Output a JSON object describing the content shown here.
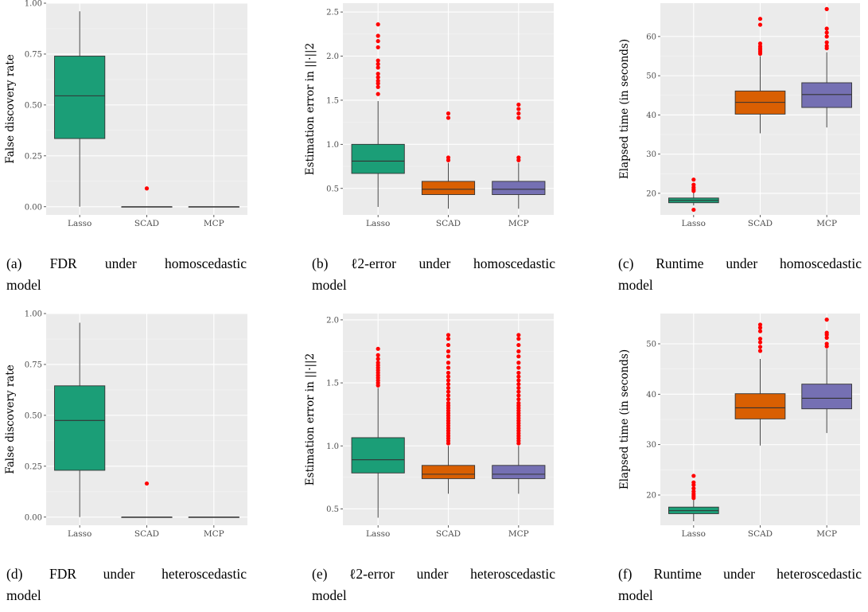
{
  "colors": {
    "panel_bg": "#ebebeb",
    "grid_major": "#ffffff",
    "outlier": "#ff0000",
    "Lasso": "#1b9e77",
    "SCAD": "#d95f02",
    "MCP": "#7570b3",
    "text": "#4d4d4d"
  },
  "chart_data": [
    {
      "type": "box",
      "caption": [
        "(a)",
        "FDR",
        "under",
        "homoscedastic",
        "model"
      ],
      "ylabel": "False discovery rate",
      "ylim": [
        -0.04,
        1.0
      ],
      "yticks": [
        0.0,
        0.25,
        0.5,
        0.75,
        1.0
      ],
      "ytick_labels": [
        "0.00",
        "0.25",
        "0.50",
        "0.75",
        "1.00"
      ],
      "categories": [
        "Lasso",
        "SCAD",
        "MCP"
      ],
      "boxes": [
        {
          "category": "Lasso",
          "q1": 0.335,
          "median": 0.545,
          "q3": 0.74,
          "whisker_low": 0.0,
          "whisker_high": 0.96,
          "outliers": []
        },
        {
          "category": "SCAD",
          "q1": 0.0,
          "median": 0.0,
          "q3": 0.0,
          "whisker_low": 0.0,
          "whisker_high": 0.0,
          "outliers": [
            0.09
          ]
        },
        {
          "category": "MCP",
          "q1": 0.0,
          "median": 0.0,
          "q3": 0.0,
          "whisker_low": 0.0,
          "whisker_high": 0.0,
          "outliers": []
        }
      ]
    },
    {
      "type": "box",
      "caption": [
        "(b)",
        "ℓ2-error",
        "under",
        "homoscedastic",
        "model"
      ],
      "ylabel": "Estimation error in ||·||2",
      "ylim": [
        0.2,
        2.6
      ],
      "yticks": [
        0.5,
        1.0,
        1.5,
        2.0,
        2.5
      ],
      "ytick_labels": [
        "0.5",
        "1.0",
        "1.5",
        "2.0",
        "2.5"
      ],
      "categories": [
        "Lasso",
        "SCAD",
        "MCP"
      ],
      "boxes": [
        {
          "category": "Lasso",
          "q1": 0.67,
          "median": 0.81,
          "q3": 1.0,
          "whisker_low": 0.29,
          "whisker_high": 1.49,
          "outliers": [
            1.57,
            1.65,
            1.69,
            1.72,
            1.76,
            1.8,
            1.87,
            1.91,
            1.95,
            2.1,
            2.17,
            2.23,
            2.36
          ]
        },
        {
          "category": "SCAD",
          "q1": 0.43,
          "median": 0.49,
          "q3": 0.58,
          "whisker_low": 0.27,
          "whisker_high": 0.79,
          "outliers": [
            0.82,
            0.85,
            1.3,
            1.35
          ]
        },
        {
          "category": "MCP",
          "q1": 0.43,
          "median": 0.49,
          "q3": 0.58,
          "whisker_low": 0.27,
          "whisker_high": 0.79,
          "outliers": [
            0.82,
            0.85,
            1.3,
            1.35,
            1.4,
            1.45
          ]
        }
      ]
    },
    {
      "type": "box",
      "caption": [
        "(c)",
        "Runtime",
        "under",
        "homoscedastic",
        "model"
      ],
      "ylabel": "Elapsed time (in seconds)",
      "ylim": [
        14.5,
        68.5
      ],
      "yticks": [
        20,
        30,
        40,
        50,
        60
      ],
      "ytick_labels": [
        "20",
        "30",
        "40",
        "50",
        "60"
      ],
      "categories": [
        "Lasso",
        "SCAD",
        "MCP"
      ],
      "boxes": [
        {
          "category": "Lasso",
          "q1": 17.6,
          "median": 18.2,
          "q3": 18.8,
          "whisker_low": 16.9,
          "whisker_high": 20.3,
          "outliers": [
            15.8,
            20.6,
            21.0,
            21.5,
            22.2,
            23.5
          ]
        },
        {
          "category": "SCAD",
          "q1": 40.2,
          "median": 43.2,
          "q3": 46.1,
          "whisker_low": 35.3,
          "whisker_high": 55.0,
          "outliers": [
            55.6,
            56.1,
            56.6,
            57.0,
            57.5,
            58.2,
            63.0,
            64.5
          ]
        },
        {
          "category": "MCP",
          "q1": 41.9,
          "median": 45.2,
          "q3": 48.2,
          "whisker_low": 36.8,
          "whisker_high": 56.0,
          "outliers": [
            57.0,
            57.6,
            58.5,
            60.0,
            61.0,
            62.0,
            67.0
          ]
        }
      ]
    },
    {
      "type": "box",
      "caption": [
        "(d)",
        "FDR",
        "under",
        "heteroscedastic",
        "model"
      ],
      "ylabel": "False discovery rate",
      "ylim": [
        -0.04,
        1.0
      ],
      "yticks": [
        0.0,
        0.25,
        0.5,
        0.75,
        1.0
      ],
      "ytick_labels": [
        "0.00",
        "0.25",
        "0.50",
        "0.75",
        "1.00"
      ],
      "categories": [
        "Lasso",
        "SCAD",
        "MCP"
      ],
      "boxes": [
        {
          "category": "Lasso",
          "q1": 0.23,
          "median": 0.475,
          "q3": 0.645,
          "whisker_low": 0.0,
          "whisker_high": 0.955,
          "outliers": []
        },
        {
          "category": "SCAD",
          "q1": 0.0,
          "median": 0.0,
          "q3": 0.0,
          "whisker_low": 0.0,
          "whisker_high": 0.0,
          "outliers": [
            0.165
          ]
        },
        {
          "category": "MCP",
          "q1": 0.0,
          "median": 0.0,
          "q3": 0.0,
          "whisker_low": 0.0,
          "whisker_high": 0.0,
          "outliers": []
        }
      ]
    },
    {
      "type": "box",
      "caption": [
        "(e)",
        "ℓ2-error",
        "under",
        "heteroscedastic",
        "model"
      ],
      "ylabel": "Estimation error in ||·||2",
      "ylim": [
        0.37,
        2.05
      ],
      "yticks": [
        0.5,
        1.0,
        1.5,
        2.0
      ],
      "ytick_labels": [
        "0.5",
        "1.0",
        "1.5",
        "2.0"
      ],
      "categories": [
        "Lasso",
        "SCAD",
        "MCP"
      ],
      "boxes": [
        {
          "category": "Lasso",
          "q1": 0.785,
          "median": 0.89,
          "q3": 1.065,
          "whisker_low": 0.43,
          "whisker_high": 1.46,
          "outliers": [
            1.48,
            1.5,
            1.52,
            1.54,
            1.56,
            1.58,
            1.6,
            1.62,
            1.64,
            1.66,
            1.69,
            1.72,
            1.77
          ]
        },
        {
          "category": "SCAD",
          "q1": 0.74,
          "median": 0.775,
          "q3": 0.845,
          "whisker_low": 0.62,
          "whisker_high": 1.0,
          "outliers": [
            1.02,
            1.04,
            1.06,
            1.08,
            1.1,
            1.12,
            1.14,
            1.16,
            1.18,
            1.2,
            1.22,
            1.24,
            1.26,
            1.28,
            1.3,
            1.32,
            1.34,
            1.37,
            1.4,
            1.43,
            1.46,
            1.49,
            1.52,
            1.55,
            1.58,
            1.62,
            1.66,
            1.71,
            1.75,
            1.8,
            1.85,
            1.88
          ]
        },
        {
          "category": "MCP",
          "q1": 0.74,
          "median": 0.775,
          "q3": 0.845,
          "whisker_low": 0.62,
          "whisker_high": 1.0,
          "outliers": [
            1.02,
            1.04,
            1.06,
            1.08,
            1.1,
            1.12,
            1.14,
            1.16,
            1.18,
            1.2,
            1.22,
            1.24,
            1.26,
            1.28,
            1.3,
            1.32,
            1.34,
            1.37,
            1.4,
            1.43,
            1.46,
            1.49,
            1.52,
            1.55,
            1.58,
            1.62,
            1.66,
            1.71,
            1.75,
            1.8,
            1.85,
            1.88
          ]
        }
      ]
    },
    {
      "type": "box",
      "caption": [
        "(f)",
        "Runtime",
        "under",
        "heteroscedastic",
        "model"
      ],
      "ylabel": "Elapsed time (in seconds)",
      "ylim": [
        14.0,
        56.0
      ],
      "yticks": [
        20,
        30,
        40,
        50
      ],
      "ytick_labels": [
        "20",
        "30",
        "40",
        "50"
      ],
      "categories": [
        "Lasso",
        "SCAD",
        "MCP"
      ],
      "boxes": [
        {
          "category": "Lasso",
          "q1": 16.3,
          "median": 16.9,
          "q3": 17.6,
          "whisker_low": 14.8,
          "whisker_high": 19.0,
          "outliers": [
            19.4,
            19.8,
            20.2,
            20.7,
            21.3,
            22.0,
            22.5,
            23.8
          ]
        },
        {
          "category": "SCAD",
          "q1": 35.1,
          "median": 37.3,
          "q3": 40.1,
          "whisker_low": 29.8,
          "whisker_high": 47.0,
          "outliers": [
            48.6,
            49.4,
            50.3,
            51.0,
            52.5,
            53.2,
            53.8
          ]
        },
        {
          "category": "MCP",
          "q1": 37.1,
          "median": 39.2,
          "q3": 42.0,
          "whisker_low": 32.3,
          "whisker_high": 49.0,
          "outliers": [
            49.5,
            50.0,
            51.2,
            51.8,
            52.2,
            54.8
          ]
        }
      ]
    }
  ]
}
